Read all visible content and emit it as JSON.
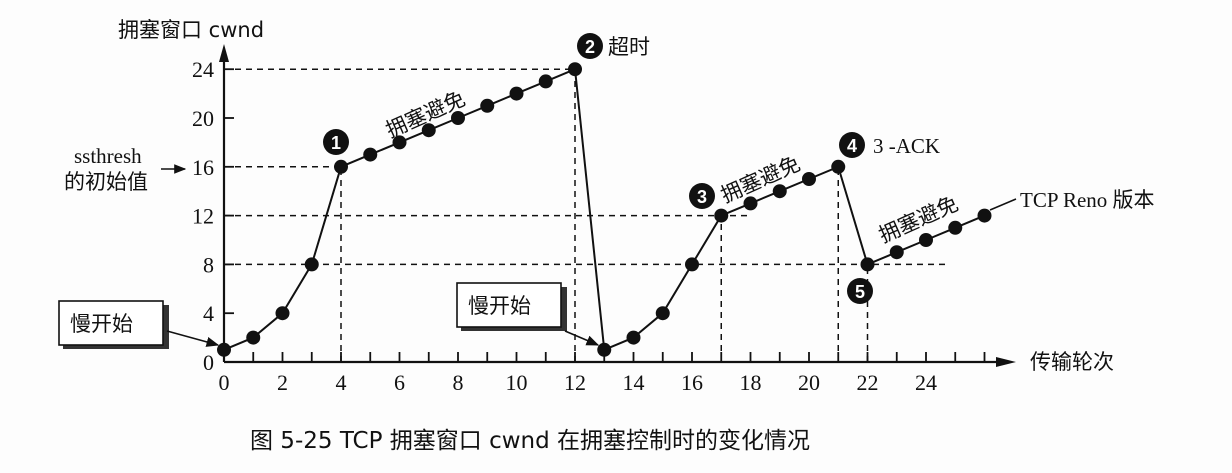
{
  "chart_data": {
    "type": "line",
    "title": "图 5-25   TCP 拥塞窗口 cwnd 在拥塞控制时的变化情况",
    "ylabel": "拥塞窗口 cwnd",
    "xlabel": "传输轮次",
    "ylim": [
      0,
      24
    ],
    "xlim": [
      0,
      26
    ],
    "y_ticks": [
      0,
      4,
      8,
      12,
      16,
      20,
      24
    ],
    "x_ticks": [
      0,
      2,
      4,
      6,
      8,
      10,
      12,
      14,
      16,
      18,
      20,
      22,
      24
    ],
    "grid": false,
    "series": [
      {
        "name": "cwnd",
        "x": [
          0,
          1,
          2,
          3,
          4,
          5,
          6,
          7,
          8,
          9,
          10,
          11,
          12,
          13,
          14,
          15,
          16,
          17,
          18,
          19,
          20,
          21,
          22,
          23,
          24,
          25,
          26
        ],
        "values": [
          1,
          2,
          4,
          8,
          16,
          17,
          18,
          19,
          20,
          21,
          22,
          23,
          24,
          1,
          2,
          4,
          8,
          12,
          13,
          14,
          15,
          16,
          8,
          9,
          10,
          11,
          12
        ]
      }
    ],
    "reference_lines": [
      {
        "orientation": "h",
        "y": 24,
        "x_from": 0,
        "x_to": 12
      },
      {
        "orientation": "h",
        "y": 16,
        "x_from": 0,
        "x_to": 4
      },
      {
        "orientation": "h",
        "y": 12,
        "x_from": 0,
        "x_to": 18
      },
      {
        "orientation": "h",
        "y": 8,
        "x_from": 0,
        "x_to": 24.8
      },
      {
        "orientation": "v",
        "x": 4,
        "y_from": 0,
        "y_to": 16
      },
      {
        "orientation": "v",
        "x": 12,
        "y_from": 0,
        "y_to": 24
      },
      {
        "orientation": "v",
        "x": 17,
        "y_from": 0,
        "y_to": 12
      },
      {
        "orientation": "v",
        "x": 21,
        "y_from": 0,
        "y_to": 16
      },
      {
        "orientation": "v",
        "x": 22,
        "y_from": 0,
        "y_to": 8
      }
    ],
    "annotations": [
      {
        "marker": "1",
        "x": 4,
        "y": 16,
        "text": ""
      },
      {
        "marker": "2",
        "x": 12,
        "y": 24,
        "text": "超时"
      },
      {
        "marker": "3",
        "x": 17,
        "y": 12,
        "text": ""
      },
      {
        "marker": "4",
        "x": 21,
        "y": 16,
        "text": "3 -ACK"
      },
      {
        "marker": "5",
        "x": 22,
        "y": 8,
        "text": ""
      },
      {
        "text": "拥塞避免",
        "segment": "x 4-12"
      },
      {
        "text": "拥塞避免",
        "segment": "x 17-21"
      },
      {
        "text": "拥塞避免",
        "segment": "x 22-26"
      },
      {
        "text": "慢开始",
        "boxed": true,
        "points_to": [
          0,
          1
        ]
      },
      {
        "text": "慢开始",
        "boxed": true,
        "points_to": [
          13,
          1
        ]
      },
      {
        "text": "ssthresh 的初始值",
        "points_to_ytick": 16
      },
      {
        "text": "TCP Reno 版本",
        "points_to_segment": "x 22-26"
      }
    ]
  },
  "labels": {
    "y_axis_title": "拥塞窗口  cwnd",
    "x_axis_title": "传输轮次",
    "ssthresh_line1": "ssthresh",
    "ssthresh_line2": "的初始值",
    "slow_start": "慢开始",
    "cong_avoid": "拥塞避免",
    "timeout": "超时",
    "three_ack": "3 -ACK",
    "reno": "TCP Reno 版本",
    "caption": "图 5-25    TCP 拥塞窗口 cwnd 在拥塞控制时的变化情况",
    "markers": [
      "1",
      "2",
      "3",
      "4",
      "5"
    ],
    "y_tick_labels": [
      "0",
      "4",
      "8",
      "12",
      "16",
      "20",
      "24"
    ],
    "x_tick_labels": [
      "0",
      "2",
      "4",
      "6",
      "8",
      "10",
      "12",
      "14",
      "16",
      "18",
      "20",
      "22",
      "24"
    ]
  }
}
